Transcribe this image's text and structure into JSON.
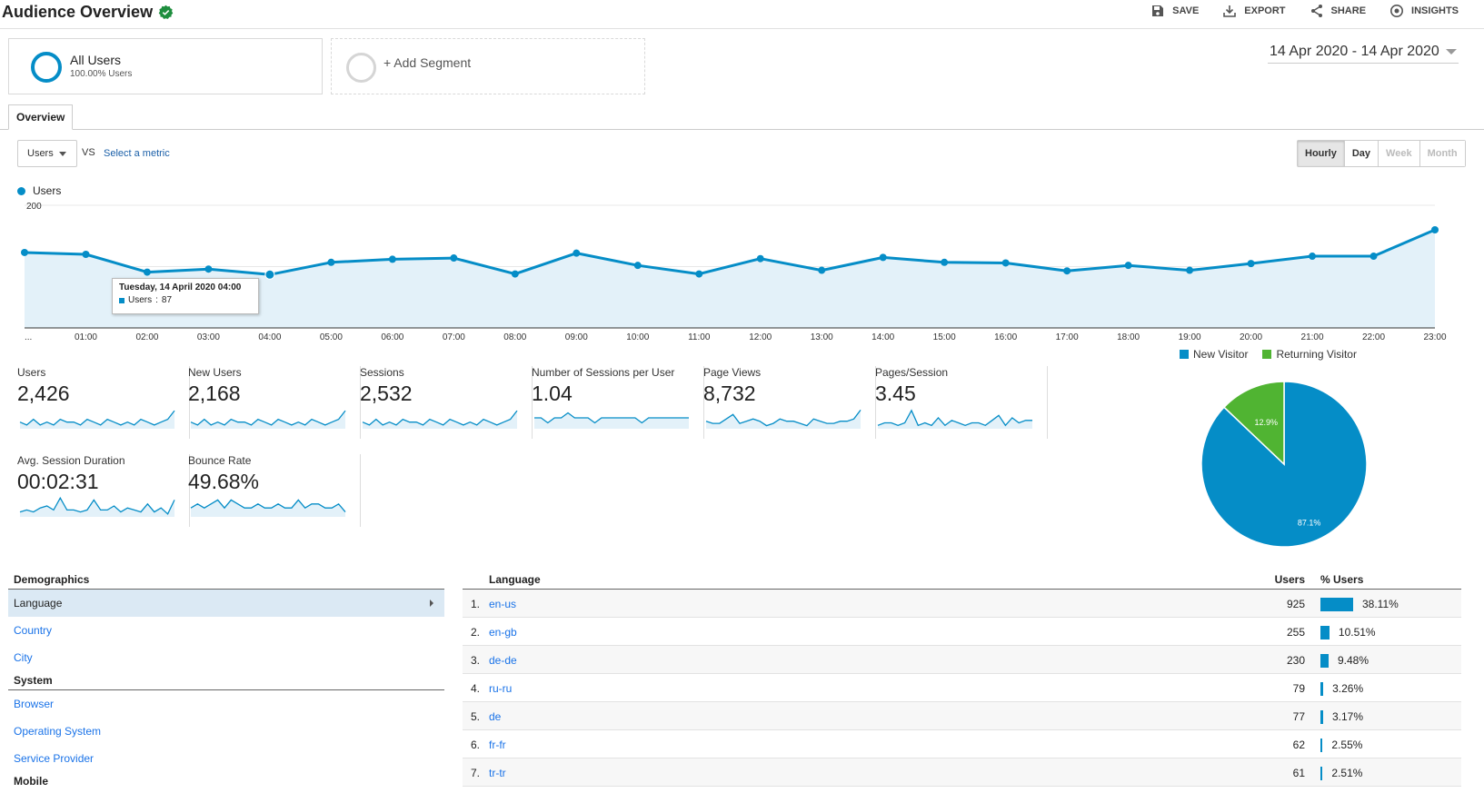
{
  "header": {
    "title": "Audience Overview",
    "actions": [
      {
        "label": "SAVE",
        "icon": "save-icon"
      },
      {
        "label": "EXPORT",
        "icon": "export-icon"
      },
      {
        "label": "SHARE",
        "icon": "share-icon"
      },
      {
        "label": "INSIGHTS",
        "icon": "insights-icon"
      }
    ]
  },
  "segments": {
    "active": {
      "name": "All Users",
      "sub": "100.00% Users"
    },
    "add_label": "+ Add Segment"
  },
  "date_range": "14 Apr 2020 - 14 Apr 2020",
  "tabs": {
    "overview": "Overview"
  },
  "controls": {
    "metric": "Users",
    "vs": "VS",
    "select_metric": "Select a metric",
    "granularity": [
      "Hourly",
      "Day",
      "Week",
      "Month"
    ],
    "granularity_selected": "Hourly",
    "granularity_disabled": [
      "Week",
      "Month"
    ]
  },
  "colors": {
    "primary": "#058dc7",
    "secondary": "#50b432",
    "fill": "#e3f1f9"
  },
  "chart_data": {
    "type": "area",
    "legend": "Users",
    "x": [
      "...",
      "01:00",
      "02:00",
      "03:00",
      "04:00",
      "05:00",
      "06:00",
      "07:00",
      "08:00",
      "09:00",
      "10:00",
      "11:00",
      "12:00",
      "13:00",
      "14:00",
      "15:00",
      "16:00",
      "17:00",
      "18:00",
      "19:00",
      "20:00",
      "21:00",
      "22:00",
      "23:00"
    ],
    "values": [
      123,
      120,
      91,
      96,
      87,
      107,
      112,
      114,
      88,
      122,
      102,
      88,
      113,
      94,
      115,
      107,
      106,
      93,
      102,
      94,
      105,
      117,
      117,
      160
    ],
    "y_ticks": [
      100,
      200
    ],
    "ylim": [
      0,
      200
    ],
    "tooltip": {
      "title": "Tuesday, 14 April 2020 04:00",
      "series": "Users",
      "value": 87,
      "index": 4
    }
  },
  "metrics": [
    {
      "label": "Users",
      "value": "2,426",
      "spark": [
        5,
        4,
        6,
        4,
        5,
        4,
        6,
        5,
        5,
        4,
        6,
        5,
        4,
        6,
        5,
        4,
        5,
        4,
        6,
        5,
        4,
        5,
        6,
        9
      ]
    },
    {
      "label": "New Users",
      "value": "2,168",
      "spark": [
        5,
        4,
        6,
        4,
        5,
        4,
        6,
        5,
        5,
        4,
        6,
        5,
        4,
        6,
        5,
        4,
        5,
        4,
        6,
        5,
        4,
        5,
        6,
        9
      ]
    },
    {
      "label": "Sessions",
      "value": "2,532",
      "spark": [
        5,
        4,
        6,
        4,
        5,
        4,
        6,
        5,
        5,
        4,
        6,
        5,
        4,
        6,
        5,
        4,
        5,
        4,
        6,
        5,
        4,
        5,
        6,
        9
      ]
    },
    {
      "label": "Number of Sessions per User",
      "value": "1.04",
      "spark": [
        6,
        6,
        5,
        6,
        6,
        7,
        6,
        6,
        6,
        5,
        6,
        6,
        6,
        6,
        6,
        6,
        5,
        6,
        6,
        6,
        6,
        6,
        6,
        6
      ]
    },
    {
      "label": "Page Views",
      "value": "8,732",
      "spark": [
        5,
        4,
        4,
        6,
        8,
        4,
        5,
        6,
        5,
        3,
        4,
        6,
        5,
        5,
        4,
        3,
        6,
        5,
        4,
        4,
        5,
        5,
        6,
        10
      ]
    },
    {
      "label": "Pages/Session",
      "value": "3.45",
      "spark": [
        4,
        5,
        5,
        4,
        5,
        10,
        4,
        5,
        4,
        7,
        4,
        6,
        5,
        4,
        5,
        5,
        4,
        6,
        8,
        4,
        7,
        5,
        6,
        6
      ]
    },
    {
      "label": "Avg. Session Duration",
      "value": "00:02:31",
      "spark": [
        3,
        4,
        3,
        5,
        6,
        4,
        10,
        4,
        4,
        3,
        4,
        9,
        4,
        4,
        6,
        3,
        5,
        4,
        3,
        7,
        3,
        5,
        2,
        9
      ]
    },
    {
      "label": "Bounce Rate",
      "value": "49.68%",
      "spark": [
        6,
        7,
        6,
        7,
        8,
        6,
        8,
        7,
        6,
        6,
        7,
        6,
        6,
        7,
        6,
        6,
        8,
        6,
        7,
        7,
        6,
        6,
        7,
        5
      ]
    }
  ],
  "pie": {
    "legend": [
      {
        "label": "New Visitor",
        "color": "#058dc7"
      },
      {
        "label": "Returning Visitor",
        "color": "#50b432"
      }
    ],
    "slices": [
      {
        "label": "New Visitor",
        "value": 87.1,
        "text": "87.1%"
      },
      {
        "label": "Returning Visitor",
        "value": 12.9,
        "text": "12.9%"
      }
    ]
  },
  "demographics": {
    "groups": [
      {
        "title": "Demographics",
        "items": [
          {
            "label": "Language",
            "active": true
          },
          {
            "label": "Country",
            "active": false
          },
          {
            "label": "City",
            "active": false
          }
        ]
      },
      {
        "title": "System",
        "items": [
          {
            "label": "Browser",
            "active": false
          },
          {
            "label": "Operating System",
            "active": false
          },
          {
            "label": "Service Provider",
            "active": false
          }
        ]
      },
      {
        "title": "Mobile",
        "items": []
      }
    ]
  },
  "language_table": {
    "headers": {
      "dimension": "Language",
      "users": "Users",
      "pct": "% Users"
    },
    "rows": [
      {
        "idx": "1.",
        "lang": "en-us",
        "users": "925",
        "pct": "38.11%",
        "share": 38.11
      },
      {
        "idx": "2.",
        "lang": "en-gb",
        "users": "255",
        "pct": "10.51%",
        "share": 10.51
      },
      {
        "idx": "3.",
        "lang": "de-de",
        "users": "230",
        "pct": "9.48%",
        "share": 9.48
      },
      {
        "idx": "4.",
        "lang": "ru-ru",
        "users": "79",
        "pct": "3.26%",
        "share": 3.26
      },
      {
        "idx": "5.",
        "lang": "de",
        "users": "77",
        "pct": "3.17%",
        "share": 3.17
      },
      {
        "idx": "6.",
        "lang": "fr-fr",
        "users": "62",
        "pct": "2.55%",
        "share": 2.55
      },
      {
        "idx": "7.",
        "lang": "tr-tr",
        "users": "61",
        "pct": "2.51%",
        "share": 2.51
      }
    ]
  }
}
